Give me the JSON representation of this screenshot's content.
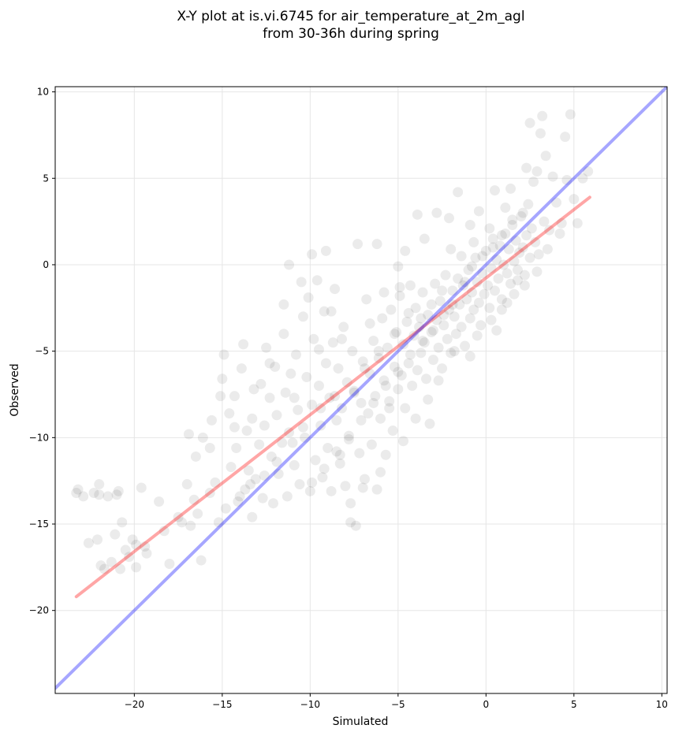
{
  "chart_data": {
    "type": "scatter",
    "title": "X-Y plot at is.vi.6745 for air_temperature_at_2m_agl",
    "subtitle": "from 30-36h during spring",
    "xlabel": "Simulated",
    "ylabel": "Observed",
    "xlim": [
      -24.5,
      10.3
    ],
    "ylim": [
      -24.8,
      10.3
    ],
    "xticks": [
      -20,
      -15,
      -10,
      -5,
      0,
      5,
      10
    ],
    "yticks": [
      -20,
      -15,
      -10,
      -5,
      0,
      5,
      10
    ],
    "grid": true,
    "point_color": "#000000",
    "point_opacity": 0.08,
    "points": [
      [
        -23.2,
        -13.0
      ],
      [
        -23.3,
        -13.2
      ],
      [
        -22.9,
        -13.4
      ],
      [
        -22.6,
        -16.1
      ],
      [
        -22.3,
        -13.2
      ],
      [
        -22.0,
        -12.7
      ],
      [
        -22.0,
        -13.3
      ],
      [
        -22.1,
        -15.9
      ],
      [
        -21.9,
        -17.4
      ],
      [
        -21.7,
        -17.6
      ],
      [
        -21.5,
        -13.4
      ],
      [
        -21.3,
        -17.2
      ],
      [
        -21.1,
        -15.6
      ],
      [
        -21.0,
        -13.3
      ],
      [
        -20.9,
        -13.1
      ],
      [
        -20.8,
        -17.6
      ],
      [
        -20.7,
        -14.9
      ],
      [
        -20.5,
        -16.5
      ],
      [
        -20.3,
        -16.9
      ],
      [
        -20.1,
        -15.9
      ],
      [
        -19.9,
        -17.5
      ],
      [
        -19.9,
        -16.2
      ],
      [
        -19.6,
        -12.9
      ],
      [
        -19.4,
        -16.3
      ],
      [
        -18.6,
        -13.7
      ],
      [
        -18.0,
        -17.3
      ],
      [
        -17.5,
        -14.6
      ],
      [
        -17.0,
        -12.7
      ],
      [
        -16.9,
        -9.8
      ],
      [
        -16.8,
        -15.1
      ],
      [
        -16.6,
        -13.6
      ],
      [
        -16.5,
        -11.1
      ],
      [
        -16.4,
        -14.4
      ],
      [
        -16.2,
        -17.1
      ],
      [
        -15.7,
        -13.2
      ],
      [
        -15.6,
        -9.0
      ],
      [
        -15.4,
        -12.6
      ],
      [
        -15.2,
        -14.9
      ],
      [
        -15.1,
        -7.6
      ],
      [
        -15.0,
        -6.6
      ],
      [
        -14.9,
        -5.2
      ],
      [
        -14.8,
        -14.1
      ],
      [
        -14.6,
        -8.6
      ],
      [
        -14.5,
        -11.7
      ],
      [
        -14.3,
        -7.6
      ],
      [
        -14.2,
        -10.6
      ],
      [
        -14.0,
        -13.4
      ],
      [
        -13.9,
        -6.0
      ],
      [
        -13.8,
        -4.6
      ],
      [
        -13.7,
        -13.0
      ],
      [
        -13.6,
        -9.6
      ],
      [
        -13.5,
        -11.9
      ],
      [
        -13.3,
        -14.6
      ],
      [
        -13.2,
        -7.2
      ],
      [
        -13.1,
        -12.4
      ],
      [
        -12.9,
        -10.4
      ],
      [
        -12.8,
        -6.9
      ],
      [
        -12.7,
        -13.5
      ],
      [
        -12.6,
        -9.3
      ],
      [
        -12.5,
        -4.8
      ],
      [
        -12.3,
        -7.7
      ],
      [
        -12.2,
        -11.1
      ],
      [
        -12.1,
        -13.8
      ],
      [
        -12.0,
        -5.9
      ],
      [
        -11.9,
        -8.7
      ],
      [
        -11.8,
        -12.1
      ],
      [
        -11.6,
        -10.3
      ],
      [
        -11.5,
        -4.0
      ],
      [
        -11.4,
        -7.4
      ],
      [
        -11.3,
        -13.4
      ],
      [
        -11.2,
        -9.7
      ],
      [
        -11.1,
        -6.3
      ],
      [
        -10.9,
        -11.6
      ],
      [
        -10.8,
        -5.2
      ],
      [
        -10.7,
        -8.4
      ],
      [
        -10.6,
        -12.7
      ],
      [
        -10.5,
        -1.0
      ],
      [
        -10.4,
        -3.0
      ],
      [
        -10.3,
        -10.0
      ],
      [
        -10.2,
        -6.5
      ],
      [
        -10.0,
        -13.1
      ],
      [
        -9.9,
        -8.1
      ],
      [
        -9.8,
        -4.3
      ],
      [
        -9.7,
        -11.3
      ],
      [
        -9.6,
        -0.9
      ],
      [
        -9.5,
        -7.0
      ],
      [
        -9.4,
        -9.3
      ],
      [
        -9.3,
        -12.3
      ],
      [
        -9.2,
        -2.7
      ],
      [
        -9.1,
        -5.7
      ],
      [
        -9.0,
        -10.6
      ],
      [
        -8.9,
        -7.7
      ],
      [
        -8.8,
        -13.1
      ],
      [
        -8.7,
        -4.5
      ],
      [
        -8.6,
        -1.4
      ],
      [
        -8.5,
        -9.0
      ],
      [
        -8.4,
        -6.0
      ],
      [
        -8.3,
        -11.5
      ],
      [
        -8.2,
        -8.3
      ],
      [
        -8.1,
        -3.6
      ],
      [
        -8.0,
        -12.8
      ],
      [
        -7.9,
        -6.8
      ],
      [
        -7.8,
        -9.9
      ],
      [
        -7.7,
        -14.9
      ],
      [
        -7.6,
        -5.0
      ],
      [
        -7.5,
        -7.3
      ],
      [
        -7.4,
        -15.1
      ],
      [
        -7.3,
        1.2
      ],
      [
        -7.2,
        -10.9
      ],
      [
        -7.1,
        -8.0
      ],
      [
        -7.0,
        -5.6
      ],
      [
        -6.9,
        -12.4
      ],
      [
        -6.8,
        -2.0
      ],
      [
        -6.7,
        -8.6
      ],
      [
        -6.6,
        -6.3
      ],
      [
        -6.5,
        -10.4
      ],
      [
        -6.4,
        -4.4
      ],
      [
        -6.3,
        -7.6
      ],
      [
        -6.2,
        -13.0
      ],
      [
        -6.1,
        -5.4
      ],
      [
        -6.0,
        -8.9
      ],
      [
        -5.9,
        -3.1
      ],
      [
        -5.8,
        -6.7
      ],
      [
        -5.7,
        -11.0
      ],
      [
        -5.6,
        -4.8
      ],
      [
        -5.5,
        -7.9
      ],
      [
        -5.4,
        -2.6
      ],
      [
        -5.3,
        -9.6
      ],
      [
        -5.2,
        -5.9
      ],
      [
        -5.1,
        -3.9
      ],
      [
        -5.0,
        -7.2
      ],
      [
        -4.9,
        -1.8
      ],
      [
        -4.8,
        -6.4
      ],
      [
        -4.7,
        -4.6
      ],
      [
        -4.6,
        -8.3
      ],
      [
        -4.5,
        -3.3
      ],
      [
        -4.4,
        -5.7
      ],
      [
        -4.3,
        -1.2
      ],
      [
        -4.2,
        -7.0
      ],
      [
        -4.1,
        -4.1
      ],
      [
        -4.0,
        -2.5
      ],
      [
        -3.9,
        -6.1
      ],
      [
        -3.8,
        -3.6
      ],
      [
        -3.7,
        -5.1
      ],
      [
        -3.6,
        -1.6
      ],
      [
        -3.5,
        -4.5
      ],
      [
        -3.4,
        -6.6
      ],
      [
        -3.3,
        -2.9
      ],
      [
        -3.2,
        -9.2
      ],
      [
        -3.1,
        -3.9
      ],
      [
        -3.0,
        -5.5
      ],
      [
        -2.9,
        -1.1
      ],
      [
        -2.8,
        -3.2
      ],
      [
        -2.7,
        -4.8
      ],
      [
        -2.6,
        -2.1
      ],
      [
        -2.5,
        -6.0
      ],
      [
        -2.4,
        -3.5
      ],
      [
        -2.3,
        -0.6
      ],
      [
        -2.2,
        -4.3
      ],
      [
        -2.1,
        -2.6
      ],
      [
        -2.0,
        -5.1
      ],
      [
        -1.9,
        -1.5
      ],
      [
        -1.8,
        -3.0
      ],
      [
        -1.7,
        -4.0
      ],
      [
        -1.6,
        -0.8
      ],
      [
        -1.5,
        -2.3
      ],
      [
        -1.4,
        -3.6
      ],
      [
        -1.3,
        -1.2
      ],
      [
        -1.2,
        -4.7
      ],
      [
        -1.1,
        -2.0
      ],
      [
        -1.0,
        -0.3
      ],
      [
        -0.9,
        -3.1
      ],
      [
        -0.8,
        -1.6
      ],
      [
        -0.7,
        -2.6
      ],
      [
        -0.6,
        0.4
      ],
      [
        -0.5,
        -1.0
      ],
      [
        -0.4,
        -2.2
      ],
      [
        -0.3,
        -3.5
      ],
      [
        -0.2,
        -0.5
      ],
      [
        -0.1,
        -1.7
      ],
      [
        0.0,
        0.8
      ],
      [
        0.1,
        -1.2
      ],
      [
        0.2,
        -2.5
      ],
      [
        0.3,
        -0.2
      ],
      [
        0.4,
        1.5
      ],
      [
        0.5,
        -1.5
      ],
      [
        0.6,
        0.3
      ],
      [
        0.7,
        -0.8
      ],
      [
        0.8,
        1.1
      ],
      [
        0.9,
        -2.0
      ],
      [
        1.0,
        0.0
      ],
      [
        1.1,
        1.8
      ],
      [
        1.2,
        -0.5
      ],
      [
        1.3,
        0.9
      ],
      [
        1.4,
        -1.1
      ],
      [
        1.5,
        2.3
      ],
      [
        1.6,
        0.2
      ],
      [
        1.7,
        1.4
      ],
      [
        1.8,
        -0.3
      ],
      [
        1.9,
        0.7
      ],
      [
        2.0,
        2.8
      ],
      [
        2.1,
        1.0
      ],
      [
        2.2,
        -0.6
      ],
      [
        2.3,
        1.7
      ],
      [
        2.4,
        3.5
      ],
      [
        2.5,
        0.4
      ],
      [
        2.6,
        2.1
      ],
      [
        2.7,
        4.8
      ],
      [
        2.8,
        1.3
      ],
      [
        2.9,
        5.4
      ],
      [
        3.0,
        0.6
      ],
      [
        3.1,
        7.6
      ],
      [
        3.2,
        8.6
      ],
      [
        3.3,
        2.5
      ],
      [
        3.4,
        6.3
      ],
      [
        3.6,
        2.0
      ],
      [
        3.8,
        5.1
      ],
      [
        4.0,
        3.6
      ],
      [
        4.3,
        2.4
      ],
      [
        4.5,
        7.4
      ],
      [
        4.6,
        4.9
      ],
      [
        4.8,
        8.7
      ],
      [
        5.0,
        3.8
      ],
      [
        5.2,
        2.4
      ],
      [
        5.5,
        5.0
      ],
      [
        5.8,
        5.4
      ],
      [
        -3.9,
        2.9
      ],
      [
        -3.5,
        1.5
      ],
      [
        -2.8,
        3.0
      ],
      [
        -2.1,
        2.7
      ],
      [
        -1.6,
        4.2
      ],
      [
        -0.9,
        2.3
      ],
      [
        -0.4,
        3.1
      ],
      [
        0.5,
        4.3
      ],
      [
        1.4,
        4.4
      ],
      [
        2.3,
        5.6
      ],
      [
        2.5,
        8.2
      ],
      [
        -6.2,
        1.2
      ],
      [
        -5.0,
        -0.1
      ],
      [
        -4.6,
        0.8
      ],
      [
        -9.1,
        0.8
      ],
      [
        -9.9,
        0.6
      ],
      [
        -11.2,
        0.0
      ],
      [
        -11.5,
        -2.3
      ],
      [
        -10.1,
        -1.9
      ],
      [
        -8.8,
        -2.7
      ],
      [
        -12.3,
        -5.7
      ],
      [
        -13.3,
        -8.9
      ],
      [
        -14.3,
        -9.4
      ],
      [
        -15.7,
        -10.6
      ],
      [
        -16.1,
        -10.0
      ],
      [
        -17.3,
        -14.9
      ],
      [
        -18.3,
        -15.4
      ],
      [
        -19.3,
        -16.7
      ],
      [
        -8.3,
        -11.0
      ],
      [
        -7.0,
        -12.9
      ],
      [
        -7.7,
        -13.8
      ],
      [
        -6.0,
        -12.0
      ],
      [
        -4.7,
        -10.2
      ],
      [
        -5.5,
        -8.3
      ],
      [
        -4.0,
        -8.9
      ],
      [
        -3.3,
        -7.8
      ],
      [
        -2.7,
        -6.7
      ],
      [
        -1.8,
        -5.0
      ],
      [
        -0.9,
        -5.3
      ],
      [
        -0.5,
        -4.1
      ],
      [
        0.3,
        -3.2
      ],
      [
        0.9,
        -2.6
      ],
      [
        1.6,
        -1.7
      ],
      [
        2.2,
        -1.2
      ],
      [
        2.9,
        -0.4
      ],
      [
        3.5,
        0.9
      ],
      [
        4.2,
        1.8
      ],
      [
        1.1,
        3.3
      ],
      [
        0.2,
        2.1
      ],
      [
        -0.7,
        1.3
      ],
      [
        -1.4,
        0.5
      ],
      [
        -2.0,
        0.9
      ],
      [
        -2.5,
        -1.5
      ],
      [
        -3.1,
        -2.3
      ],
      [
        -3.7,
        -3.1
      ],
      [
        -4.4,
        -2.8
      ],
      [
        -5.2,
        -4.0
      ],
      [
        -6.1,
        -5.0
      ],
      [
        -6.9,
        -6.0
      ],
      [
        -7.5,
        -7.4
      ],
      [
        -8.6,
        -7.6
      ],
      [
        -9.4,
        -8.3
      ],
      [
        -10.4,
        -9.4
      ],
      [
        -11.0,
        -10.3
      ],
      [
        -11.9,
        -11.4
      ],
      [
        -12.6,
        -12.2
      ],
      [
        -13.4,
        -12.7
      ],
      [
        -14.1,
        -13.7
      ],
      [
        -10.9,
        -7.7
      ],
      [
        -9.5,
        -4.9
      ],
      [
        -8.2,
        -4.3
      ],
      [
        -6.6,
        -3.4
      ],
      [
        -5.8,
        -1.6
      ],
      [
        -4.9,
        -1.3
      ],
      [
        0.6,
        -3.8
      ],
      [
        1.2,
        -2.2
      ],
      [
        1.8,
        -0.9
      ],
      [
        -1.2,
        -1.0
      ],
      [
        -0.8,
        -0.1
      ],
      [
        -0.2,
        0.5
      ],
      [
        0.4,
        1.0
      ],
      [
        0.9,
        1.7
      ],
      [
        1.5,
        2.6
      ],
      [
        2.1,
        3.0
      ],
      [
        -1.9,
        -2.3
      ],
      [
        -2.4,
        -2.9
      ],
      [
        -3.0,
        -3.8
      ],
      [
        -3.6,
        -4.4
      ],
      [
        -4.3,
        -5.2
      ],
      [
        -5.0,
        -6.2
      ],
      [
        -5.7,
        -7.0
      ],
      [
        -6.4,
        -8.0
      ],
      [
        -7.1,
        -9.0
      ],
      [
        -7.8,
        -10.1
      ],
      [
        -8.5,
        -10.8
      ],
      [
        -9.2,
        -11.8
      ],
      [
        -9.9,
        -12.6
      ]
    ],
    "series": [
      {
        "type": "line",
        "color": "#ff0000",
        "opacity": 0.35,
        "x": [
          -23.3,
          5.9
        ],
        "y": [
          -19.2,
          3.9
        ]
      },
      {
        "type": "line",
        "color": "#0000ff",
        "opacity": 0.35,
        "x": [
          -24.5,
          10.3
        ],
        "y": [
          -24.5,
          10.3
        ]
      }
    ]
  }
}
